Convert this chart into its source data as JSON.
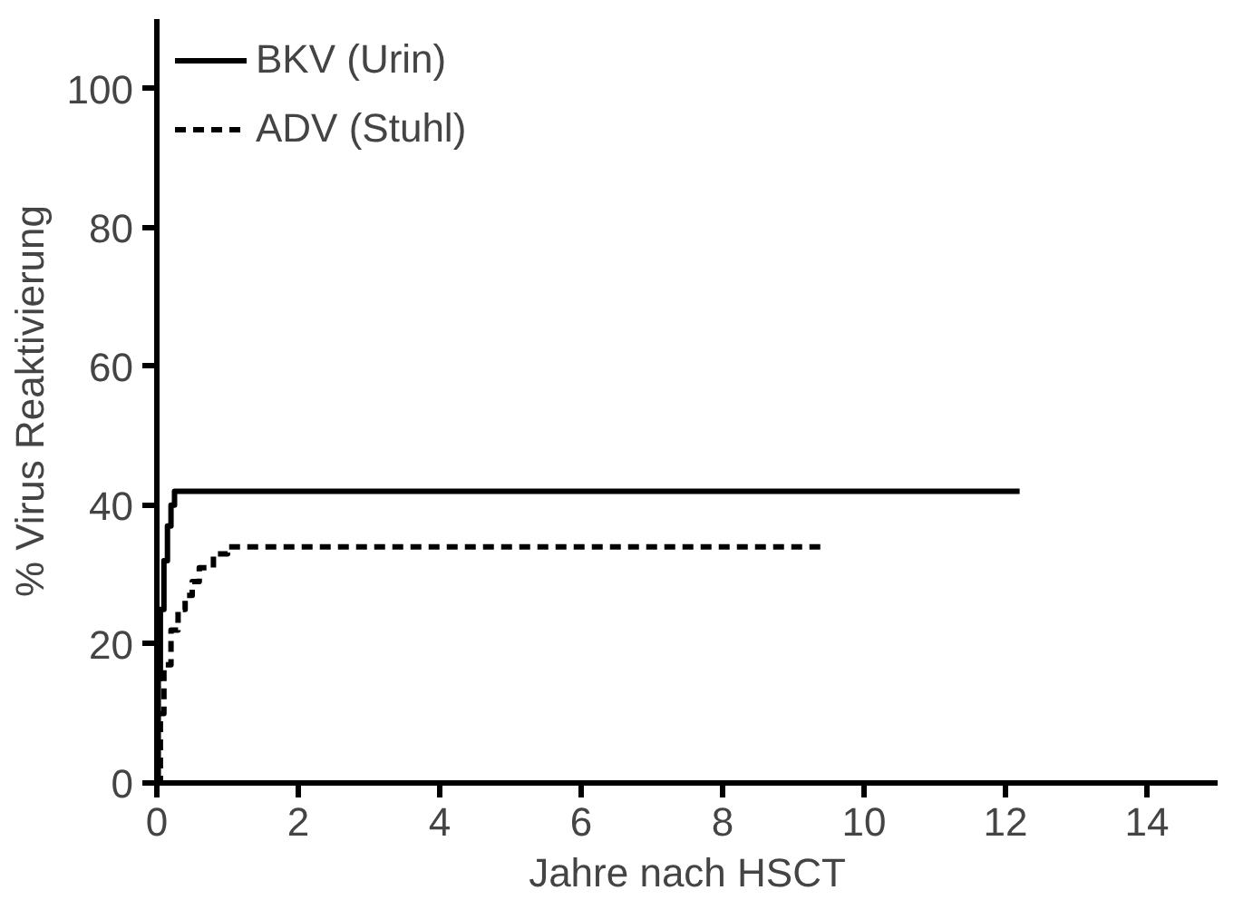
{
  "chart_data": {
    "type": "step",
    "xlabel": "Jahre nach HSCT",
    "ylabel": "% Virus Reaktivierung",
    "xlim": [
      0,
      15
    ],
    "ylim": [
      0,
      110
    ],
    "xticks": [
      0,
      2,
      4,
      6,
      8,
      10,
      12,
      14
    ],
    "yticks": [
      0,
      20,
      40,
      60,
      80,
      100
    ],
    "grid": false,
    "legend": "top left",
    "series": [
      {
        "name": "BKV (Urin)",
        "color": "#000000",
        "line_style": "solid",
        "x": [
          0,
          0.02,
          0.05,
          0.1,
          0.15,
          0.2,
          0.25,
          12.2
        ],
        "values": [
          0,
          15,
          25,
          32,
          37,
          40,
          42,
          42
        ]
      },
      {
        "name": "ADV (Stuhl)",
        "color": "#000000",
        "line_style": "dashed",
        "x": [
          0,
          0.05,
          0.1,
          0.2,
          0.3,
          0.4,
          0.5,
          0.6,
          0.8,
          1.0,
          9.4
        ],
        "values": [
          0,
          10,
          17,
          22,
          25,
          27,
          29,
          31,
          33,
          34,
          34
        ]
      }
    ]
  }
}
